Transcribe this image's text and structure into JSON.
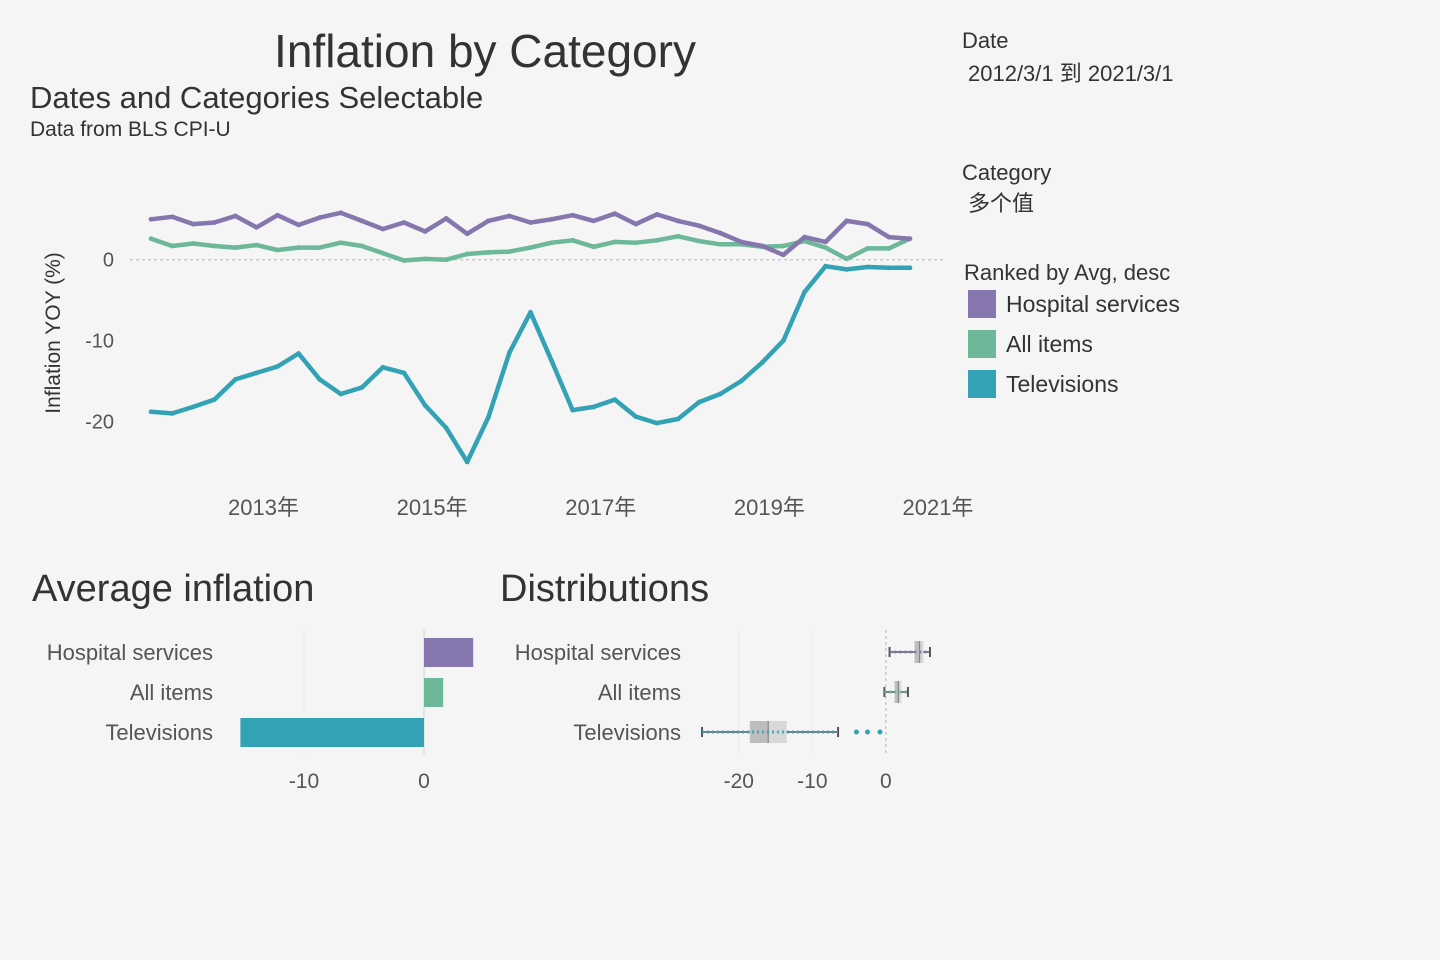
{
  "header": {
    "title": "Inflation by Category",
    "subtitle": "Dates and Categories Selectable",
    "source": "Data from BLS CPI-U"
  },
  "filters": {
    "date_label": "Date",
    "date_value": "2012/3/1 到 2021/3/1",
    "category_label": "Category",
    "category_value": "多个值"
  },
  "legend": {
    "title": "Ranked by Avg, desc",
    "items": [
      {
        "label": "Hospital services",
        "color": "#8576ad"
      },
      {
        "label": "All items",
        "color": "#6cb898"
      },
      {
        "label": "Televisions",
        "color": "#33a2b4"
      }
    ]
  },
  "colors": {
    "Hospital services": "#8576ad",
    "All items": "#6cb898",
    "Televisions": "#33a2b4"
  },
  "panels": {
    "average_title": "Average inflation",
    "distributions_title": "Distributions"
  },
  "chart_data": [
    {
      "id": "line",
      "type": "line",
      "ylabel": "Inflation YOY (%)",
      "y_ticks": [
        0,
        -10,
        -20
      ],
      "y_tick_labels": [
        "0",
        "-10",
        "-20"
      ],
      "x_ticks": [
        2013,
        2015,
        2017,
        2019,
        2021
      ],
      "x_tick_labels": [
        "2013年",
        "2015年",
        "2017年",
        "2019年",
        "2021年"
      ],
      "ylim": [
        -26,
        8
      ],
      "xlim": [
        "2011-12",
        "2021-08"
      ],
      "reference_line": 0,
      "series": [
        {
          "name": "Hospital services",
          "x": [
            "2012-03",
            "2012-06",
            "2012-09",
            "2012-12",
            "2013-03",
            "2013-06",
            "2013-09",
            "2013-12",
            "2014-03",
            "2014-06",
            "2014-09",
            "2014-12",
            "2015-03",
            "2015-06",
            "2015-09",
            "2015-12",
            "2016-03",
            "2016-06",
            "2016-09",
            "2016-12",
            "2017-03",
            "2017-06",
            "2017-09",
            "2017-12",
            "2018-03",
            "2018-06",
            "2018-09",
            "2018-12",
            "2019-03",
            "2019-06",
            "2019-09",
            "2019-12",
            "2020-03",
            "2020-06",
            "2020-09",
            "2020-12",
            "2021-03"
          ],
          "values": [
            5.0,
            5.3,
            4.4,
            4.6,
            5.4,
            4.0,
            5.5,
            4.3,
            5.2,
            5.8,
            4.8,
            3.8,
            4.6,
            3.5,
            5.1,
            3.2,
            4.8,
            5.4,
            4.6,
            5.0,
            5.5,
            4.8,
            5.7,
            4.4,
            5.6,
            4.8,
            4.2,
            3.3,
            2.2,
            1.7,
            0.6,
            2.8,
            2.2,
            4.8,
            4.4,
            2.8,
            2.6
          ]
        },
        {
          "name": "All items",
          "x": [
            "2012-03",
            "2012-06",
            "2012-09",
            "2012-12",
            "2013-03",
            "2013-06",
            "2013-09",
            "2013-12",
            "2014-03",
            "2014-06",
            "2014-09",
            "2014-12",
            "2015-03",
            "2015-06",
            "2015-09",
            "2015-12",
            "2016-03",
            "2016-06",
            "2016-09",
            "2016-12",
            "2017-03",
            "2017-06",
            "2017-09",
            "2017-12",
            "2018-03",
            "2018-06",
            "2018-09",
            "2018-12",
            "2019-03",
            "2019-06",
            "2019-09",
            "2019-12",
            "2020-03",
            "2020-06",
            "2020-09",
            "2020-12",
            "2021-03"
          ],
          "values": [
            2.6,
            1.7,
            2.0,
            1.7,
            1.5,
            1.8,
            1.2,
            1.5,
            1.5,
            2.1,
            1.7,
            0.8,
            -0.1,
            0.1,
            0.0,
            0.7,
            0.9,
            1.0,
            1.5,
            2.1,
            2.4,
            1.6,
            2.2,
            2.1,
            2.4,
            2.9,
            2.3,
            1.9,
            1.9,
            1.6,
            1.7,
            2.3,
            1.5,
            0.1,
            1.4,
            1.4,
            2.6
          ]
        },
        {
          "name": "Televisions",
          "x": [
            "2012-03",
            "2012-06",
            "2012-09",
            "2012-12",
            "2013-03",
            "2013-06",
            "2013-09",
            "2013-12",
            "2014-03",
            "2014-06",
            "2014-09",
            "2014-12",
            "2015-03",
            "2015-06",
            "2015-09",
            "2015-12",
            "2016-03",
            "2016-06",
            "2016-09",
            "2016-12",
            "2017-03",
            "2017-06",
            "2017-09",
            "2017-12",
            "2018-03",
            "2018-06",
            "2018-09",
            "2018-12",
            "2019-03",
            "2019-06",
            "2019-09",
            "2019-12",
            "2020-03",
            "2020-06",
            "2020-09",
            "2020-12",
            "2021-03"
          ],
          "values": [
            -18.8,
            -19.0,
            -18.2,
            -17.3,
            -14.8,
            -14.0,
            -13.2,
            -11.6,
            -14.8,
            -16.6,
            -15.8,
            -13.3,
            -14.0,
            -18.0,
            -20.8,
            -25.0,
            -19.5,
            -11.5,
            -6.5,
            -12.5,
            -18.6,
            -18.2,
            -17.3,
            -19.4,
            -20.2,
            -19.7,
            -17.6,
            -16.6,
            -15.0,
            -12.7,
            -10.0,
            -4.0,
            -0.8,
            -1.2,
            -0.9,
            -1.0,
            -1.0
          ]
        }
      ]
    },
    {
      "id": "average",
      "type": "bar",
      "orientation": "horizontal",
      "categories": [
        "Hospital services",
        "All items",
        "Televisions"
      ],
      "values": [
        4.1,
        1.6,
        -15.3
      ],
      "x_ticks": [
        -10,
        0
      ],
      "x_tick_labels": [
        "-10",
        "0"
      ],
      "xlim": [
        -20,
        5
      ]
    },
    {
      "id": "distributions",
      "type": "box",
      "categories": [
        "Hospital services",
        "All items",
        "Televisions"
      ],
      "stats": [
        {
          "min": 0.5,
          "q1": 3.9,
          "median": 4.6,
          "q3": 5.1,
          "max": 6.0
        },
        {
          "min": -0.2,
          "q1": 1.2,
          "median": 1.7,
          "q3": 2.1,
          "max": 3.0
        },
        {
          "min": -25.0,
          "q1": -18.5,
          "median": -16.0,
          "q3": -13.5,
          "max": -6.5
        }
      ],
      "outliers": [
        [],
        [],
        [
          -4.0,
          -2.5,
          -0.8
        ]
      ],
      "x_ticks": [
        -20,
        -10,
        0
      ],
      "x_tick_labels": [
        "-20",
        "-10",
        "0"
      ],
      "xlim": [
        -25,
        6
      ]
    }
  ]
}
